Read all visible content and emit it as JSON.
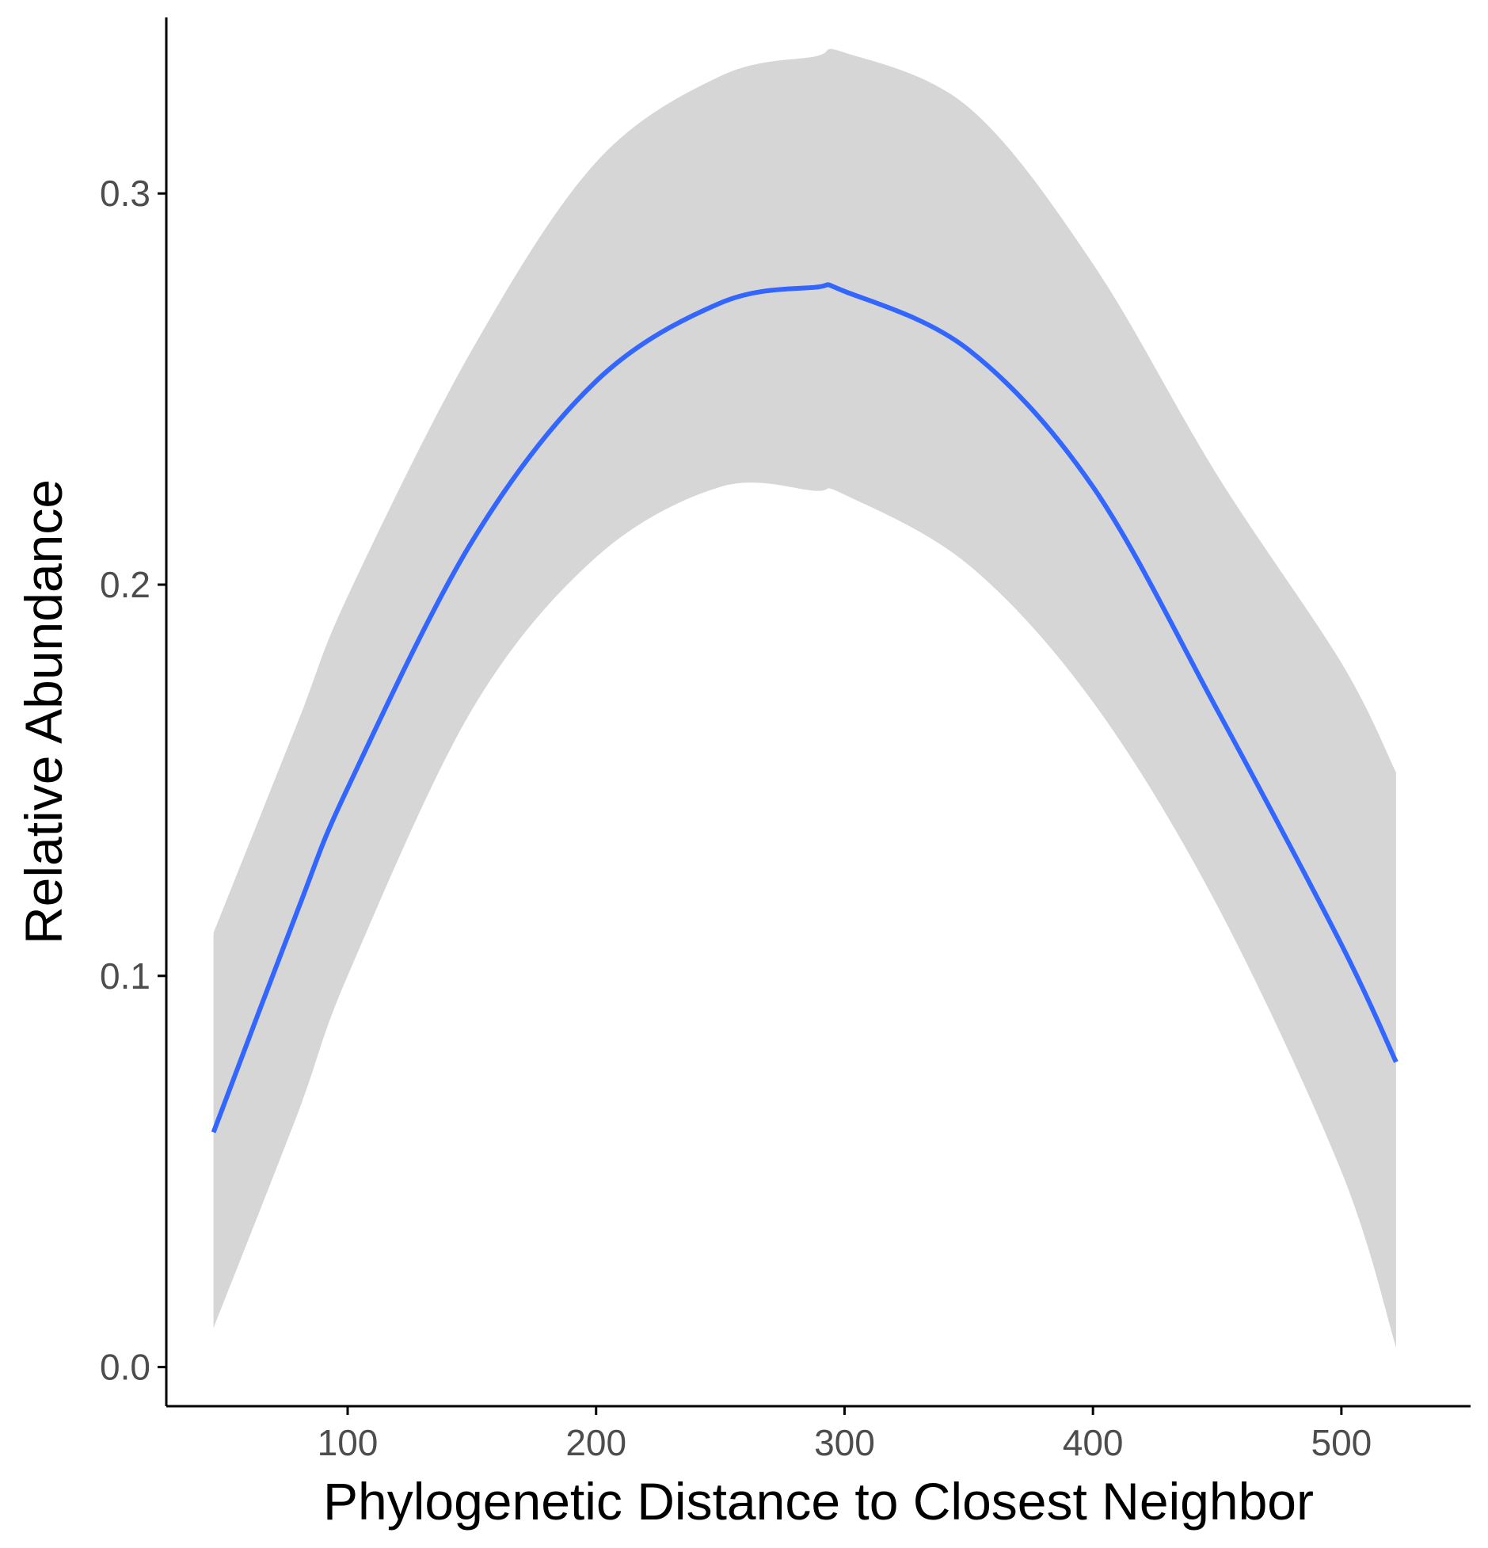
{
  "chart_data": {
    "type": "line",
    "title": "",
    "xlabel": "Phylogenetic Distance to Closest Neighbor",
    "ylabel": "Relative Abundance",
    "xlim": [
      27,
      552
    ],
    "ylim": [
      -0.01,
      0.345
    ],
    "x_ticks": [
      100,
      200,
      300,
      400,
      500
    ],
    "x_tick_labels": [
      "100",
      "200",
      "300",
      "400",
      "500"
    ],
    "y_ticks": [
      0.0,
      0.1,
      0.2,
      0.3
    ],
    "y_tick_labels": [
      "0.0",
      "0.1",
      "0.2",
      "0.3"
    ],
    "grid": false,
    "legend": "none",
    "colors": {
      "line": "#3366ff",
      "band": "#d6d6d6",
      "axis": "#000000",
      "tick_text": "#4d4d4d"
    },
    "series": [
      {
        "x": [
          46,
          80,
          100,
          150,
          200,
          250,
          288,
          300,
          350,
          400,
          450,
          500,
          522
        ],
        "y": [
          0.06,
          0.117,
          0.148,
          0.211,
          0.252,
          0.272,
          0.276,
          0.275,
          0.26,
          0.225,
          0.168,
          0.108,
          0.078
        ],
        "ymin": [
          0.01,
          0.065,
          0.1,
          0.168,
          0.207,
          0.225,
          0.224,
          0.223,
          0.205,
          0.17,
          0.118,
          0.05,
          0.005
        ],
        "ymax": [
          0.111,
          0.165,
          0.197,
          0.26,
          0.308,
          0.33,
          0.335,
          0.336,
          0.322,
          0.282,
          0.228,
          0.18,
          0.152
        ]
      }
    ]
  }
}
